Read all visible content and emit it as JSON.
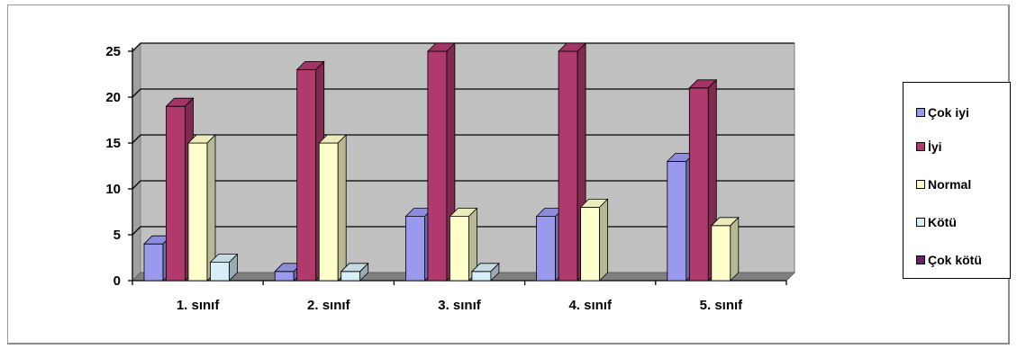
{
  "chart_data": {
    "type": "bar",
    "title": "",
    "xlabel": "",
    "ylabel": "",
    "categories": [
      "1. sınıf",
      "2. sınıf",
      "3. sınıf",
      "4. sınıf",
      "5. sınıf"
    ],
    "ylim": [
      0,
      25
    ],
    "yticks": [
      "0",
      "5",
      "10",
      "15",
      "20",
      "25"
    ],
    "grid": true,
    "legend_position": "right",
    "series": [
      {
        "name": "Çok iyi",
        "color": "#9999ee",
        "values": [
          4,
          1,
          7,
          7,
          13
        ]
      },
      {
        "name": "İyi",
        "color": "#b03a6e",
        "values": [
          19,
          23,
          25,
          25,
          21
        ]
      },
      {
        "name": "Normal",
        "color": "#ffffcc",
        "values": [
          15,
          15,
          7,
          8,
          6
        ]
      },
      {
        "name": "Kötü",
        "color": "#d6eef8",
        "values": [
          2,
          1,
          1,
          0,
          0
        ]
      },
      {
        "name": "Çok kötü",
        "color": "#6a1f6a",
        "values": [
          0,
          0,
          0,
          0,
          0
        ]
      }
    ]
  }
}
